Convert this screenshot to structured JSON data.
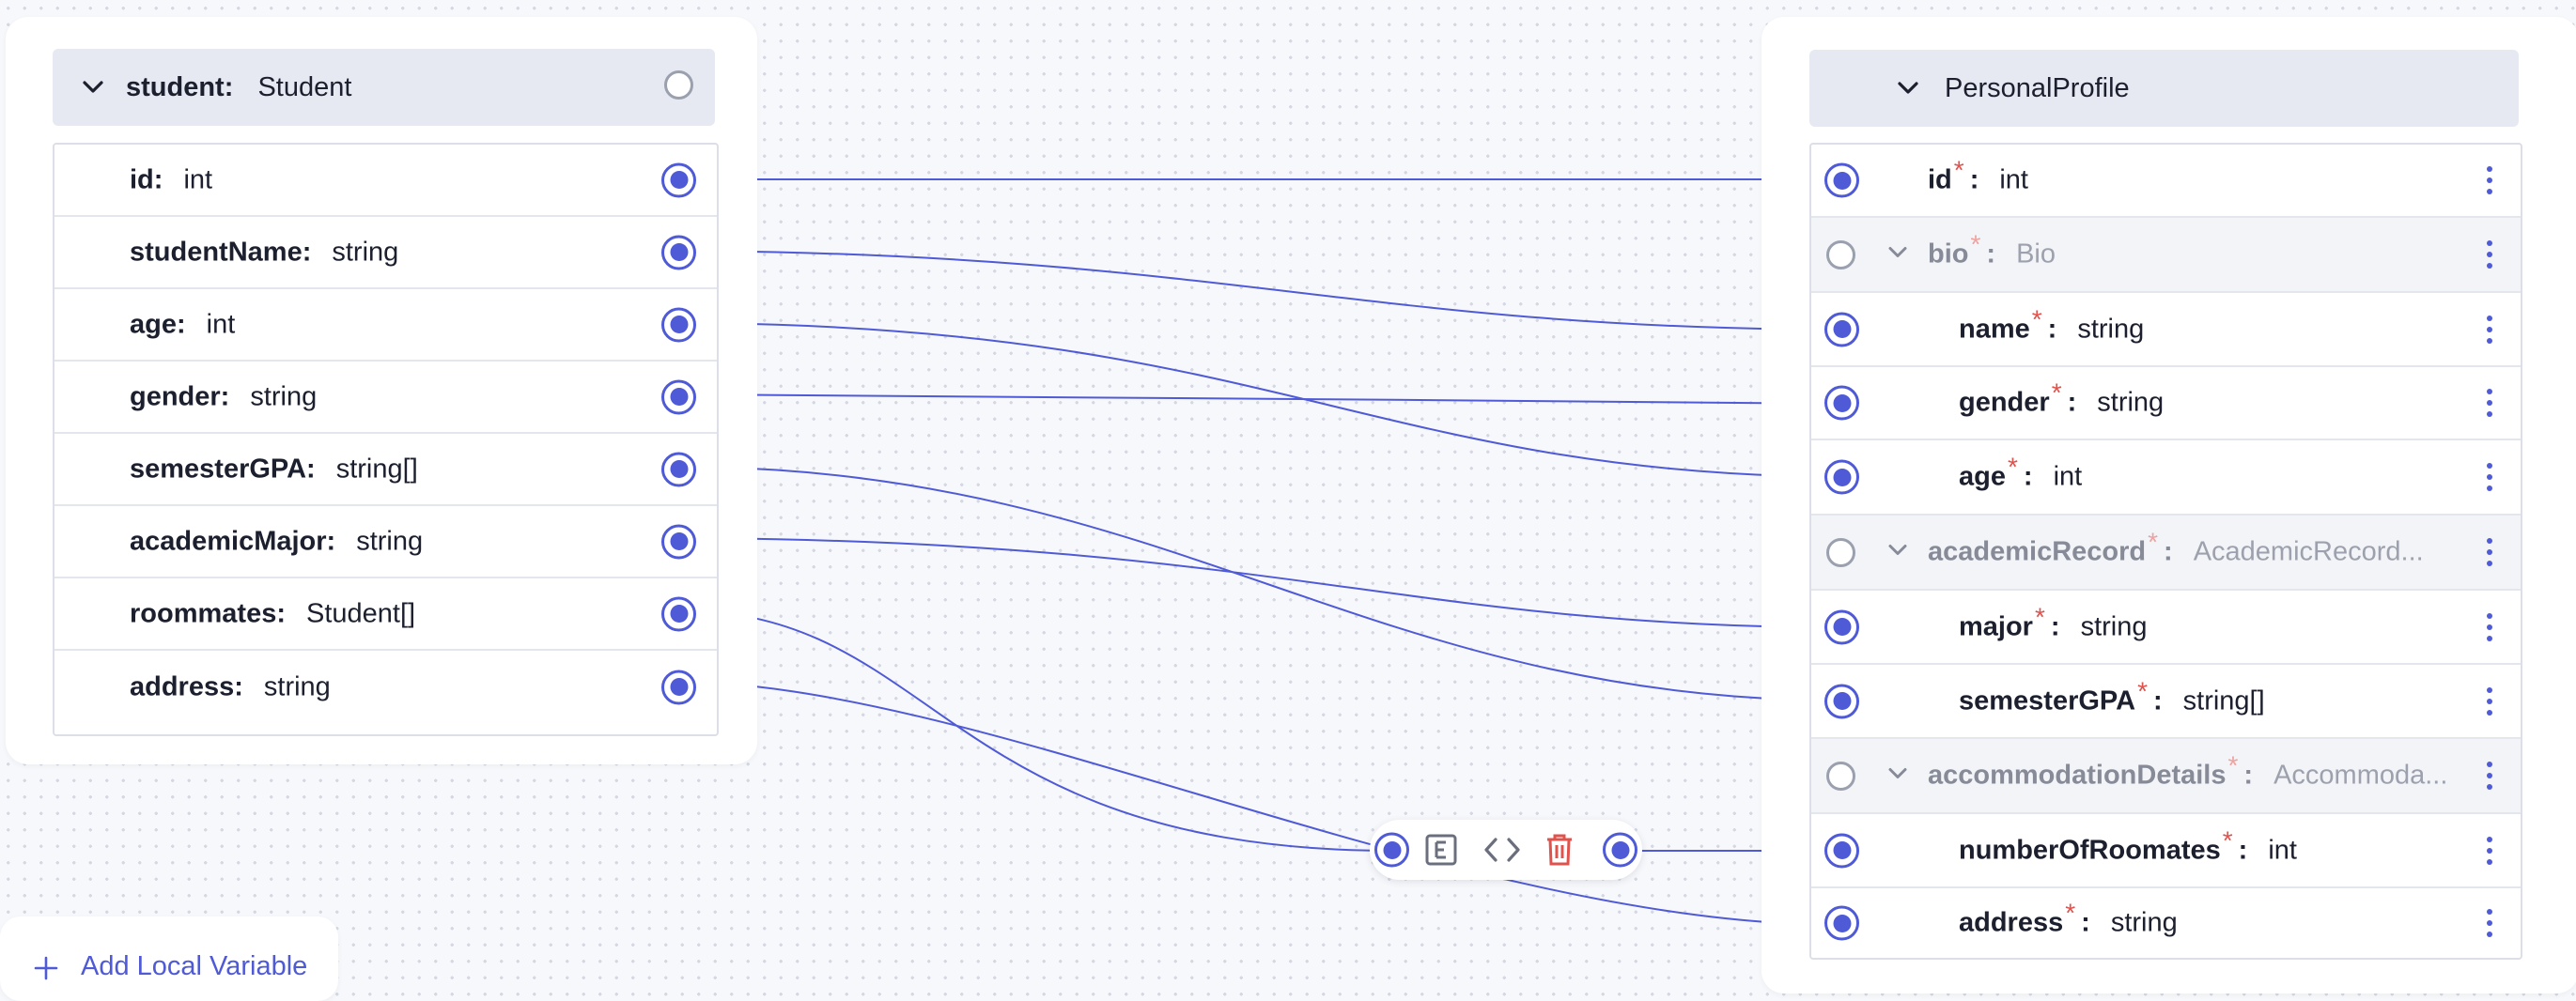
{
  "source": {
    "var_name": "student:",
    "type_name": "Student",
    "fields": [
      {
        "name": "id:",
        "type": "int"
      },
      {
        "name": "studentName:",
        "type": "string"
      },
      {
        "name": "age:",
        "type": "int"
      },
      {
        "name": "gender:",
        "type": "string"
      },
      {
        "name": "semesterGPA:",
        "type": "string[]"
      },
      {
        "name": "academicMajor:",
        "type": "string"
      },
      {
        "name": "roommates:",
        "type": "Student[]"
      },
      {
        "name": "address:",
        "type": "string"
      }
    ]
  },
  "target": {
    "type_name": "PersonalProfile",
    "required_marker": "*",
    "rows": [
      {
        "name": "id",
        "sep": ":",
        "type": "int",
        "group": false
      },
      {
        "name": "bio",
        "sep": ":",
        "type": "Bio",
        "group": true
      },
      {
        "name": "name",
        "sep": ":",
        "type": "string",
        "group": false
      },
      {
        "name": "gender",
        "sep": ":",
        "type": "string",
        "group": false
      },
      {
        "name": "age",
        "sep": ":",
        "type": "int",
        "group": false
      },
      {
        "name": "academicRecord",
        "sep": ":",
        "type": "AcademicRecord...",
        "group": true
      },
      {
        "name": "major",
        "sep": ":",
        "type": "string",
        "group": false
      },
      {
        "name": "semesterGPA",
        "sep": ":",
        "type": "string[]",
        "group": false
      },
      {
        "name": "accommodationDetails",
        "sep": ":",
        "type": "Accommoda...",
        "group": true
      },
      {
        "name": "numberOfRoomates",
        "sep": ":",
        "type": "int",
        "group": false
      },
      {
        "name": "address",
        "sep": ":",
        "type": "string",
        "group": false
      }
    ]
  },
  "mappings": [
    {
      "from": "id",
      "to": "id"
    },
    {
      "from": "studentName",
      "to": "name"
    },
    {
      "from": "age",
      "to": "age"
    },
    {
      "from": "gender",
      "to": "gender"
    },
    {
      "from": "semesterGPA",
      "to": "semesterGPA"
    },
    {
      "from": "academicMajor",
      "to": "major"
    },
    {
      "from": "roommates",
      "to": "numberOfRoomates",
      "via": "expression-node"
    },
    {
      "from": "address",
      "to": "address"
    }
  ],
  "add_local_variable": {
    "label": "Add Local Variable"
  },
  "colors": {
    "accent": "#4f5ad6",
    "required": "#e0524c",
    "delete": "#e0524c",
    "header_bg": "#e6e9f1"
  },
  "icons": {
    "expand": "chevron-down-icon",
    "field_menu": "kebab-menu-icon",
    "expression": "expression-e-icon",
    "code": "code-brackets-icon",
    "delete": "trash-icon",
    "add": "plus-icon"
  }
}
